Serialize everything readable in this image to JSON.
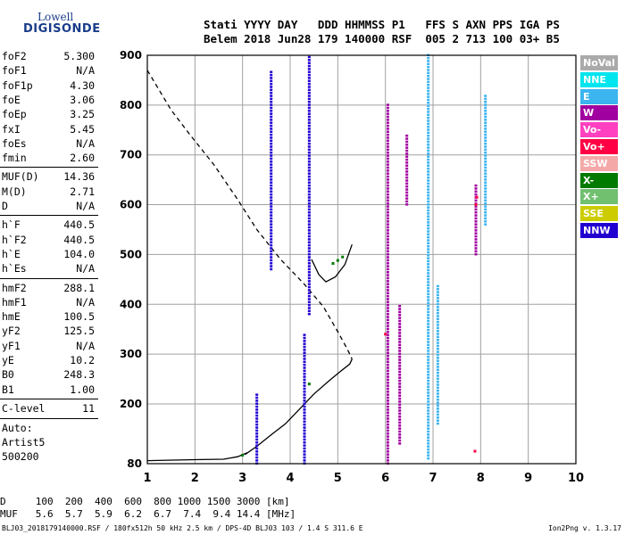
{
  "logo": {
    "line1": "Lowell",
    "line2": "DIGISONDE"
  },
  "header": {
    "row1": "Stati YYYY DAY   DDD HHMMSS P1   FFS S AXN PPS IGA PS",
    "row2": "Belem 2018 Jun28 179 140000 RSF  005 2 713 100 03+ B5"
  },
  "params": [
    {
      "name": "foF2",
      "value": "5.300"
    },
    {
      "name": "foF1",
      "value": "N/A"
    },
    {
      "name": "foF1p",
      "value": "4.30"
    },
    {
      "name": "foE",
      "value": "3.06"
    },
    {
      "name": "foEp",
      "value": "3.25"
    },
    {
      "name": "fxI",
      "value": "5.45"
    },
    {
      "name": "foEs",
      "value": "N/A"
    },
    {
      "name": "fmin",
      "value": "2.60"
    },
    {
      "name": "MUF(D)",
      "value": "14.36"
    },
    {
      "name": "M(D)",
      "value": "2.71"
    },
    {
      "name": "D",
      "value": "N/A"
    },
    {
      "name": "h`F",
      "value": "440.5"
    },
    {
      "name": "h`F2",
      "value": "440.5"
    },
    {
      "name": "h`E",
      "value": "104.0"
    },
    {
      "name": "h`Es",
      "value": "N/A"
    },
    {
      "name": "hmF2",
      "value": "288.1"
    },
    {
      "name": "hmF1",
      "value": "N/A"
    },
    {
      "name": "hmE",
      "value": "100.5"
    },
    {
      "name": "yF2",
      "value": "125.5"
    },
    {
      "name": "yF1",
      "value": "N/A"
    },
    {
      "name": "yE",
      "value": "10.2"
    },
    {
      "name": "B0",
      "value": "248.3"
    },
    {
      "name": "B1",
      "value": "1.00"
    },
    {
      "name": "C-level",
      "value": "11"
    }
  ],
  "autoscaling": {
    "label": "Auto:",
    "system": "Artist5",
    "version": "500200"
  },
  "legend": [
    {
      "label": "NoVal",
      "color": "#aaaaaa"
    },
    {
      "label": "NNE",
      "color": "#00e5ee"
    },
    {
      "label": "E",
      "color": "#3cb4f0"
    },
    {
      "label": "W",
      "color": "#a000a0"
    },
    {
      "label": "Vo-",
      "color": "#ff40c0"
    },
    {
      "label": "Vo+",
      "color": "#ff0044"
    },
    {
      "label": "SSW",
      "color": "#f4a8a8"
    },
    {
      "label": "X-",
      "color": "#007a00"
    },
    {
      "label": "X+",
      "color": "#70c070"
    },
    {
      "label": "SSE",
      "color": "#cccc00"
    },
    {
      "label": "NNW",
      "color": "#2000d0"
    }
  ],
  "scale": {
    "row1": "D     100  200  400  600  800 1000 1500 3000 [km]",
    "row2": "MUF   5.6  5.7  5.9  6.2  6.7  7.4  9.4 14.4 [MHz]"
  },
  "footer": {
    "left": "BLJ03_2018179140000.RSF / 180fx512h 50 kHz 2.5 km / DPS-4D BLJ03 103 / 1.4 S 311.6 E",
    "right": "Ion2Png v. 1.3.17"
  },
  "chart_data": {
    "type": "scatter",
    "title": "",
    "xlabel": "",
    "ylabel": "",
    "xlim": [
      1,
      10
    ],
    "ylim": [
      80,
      900
    ],
    "x_ticks": [
      1,
      2,
      3,
      4,
      5,
      6,
      7,
      8,
      9,
      10
    ],
    "y_ticks": [
      80,
      200,
      300,
      400,
      500,
      600,
      700,
      800,
      900
    ],
    "grid": true,
    "legend_position": "right",
    "series": [
      {
        "name": "E-layer trace",
        "kind": "line",
        "style": "solid",
        "color": "#000000",
        "x": [
          1.0,
          2.0,
          2.6,
          2.9,
          3.0,
          3.1
        ],
        "y": [
          86,
          88,
          89,
          94,
          98,
          102
        ]
      },
      {
        "name": "F-layer trace",
        "kind": "line",
        "style": "solid",
        "color": "#000000",
        "x": [
          3.05,
          3.3,
          3.6,
          3.9,
          4.2,
          4.5,
          4.8,
          5.05,
          5.25,
          5.3
        ],
        "y": [
          98,
          115,
          138,
          160,
          190,
          220,
          245,
          265,
          280,
          290
        ]
      },
      {
        "name": "Profile",
        "kind": "line",
        "style": "dashed",
        "color": "#000000",
        "x": [
          1.0,
          1.25,
          1.5,
          1.9,
          2.4,
          2.9,
          3.3,
          3.8,
          4.3,
          4.7,
          5.0,
          5.2,
          5.3
        ],
        "y": [
          870,
          830,
          790,
          740,
          680,
          610,
          550,
          490,
          440,
          395,
          345,
          310,
          290
        ]
      },
      {
        "name": "F2 cusp",
        "kind": "line",
        "style": "solid",
        "color": "#000000",
        "x": [
          4.45,
          4.6,
          4.75,
          4.95,
          5.15,
          5.3
        ],
        "y": [
          490,
          460,
          445,
          455,
          480,
          520
        ]
      },
      {
        "name": "NNW",
        "kind": "bars",
        "color": "#2000d0",
        "x": [
          3.3,
          3.6,
          4.3,
          4.4
        ],
        "ranges": [
          [
            80,
            220
          ],
          [
            470,
            870
          ],
          [
            80,
            340
          ],
          [
            380,
            900
          ]
        ]
      },
      {
        "name": "W",
        "kind": "bars",
        "color": "#a000a0",
        "x": [
          6.05,
          6.3,
          6.45,
          7.9
        ],
        "ranges": [
          [
            80,
            800
          ],
          [
            120,
            400
          ],
          [
            600,
            740
          ],
          [
            500,
            640
          ]
        ]
      },
      {
        "name": "E",
        "kind": "bars",
        "color": "#3cb4f0",
        "x": [
          6.9,
          7.1,
          8.1
        ],
        "ranges": [
          [
            90,
            900
          ],
          [
            160,
            440
          ],
          [
            560,
            820
          ]
        ]
      },
      {
        "name": "X-",
        "kind": "points",
        "color": "#007a00",
        "x": [
          4.9,
          5.0,
          5.1,
          4.4,
          3.0
        ],
        "y": [
          482,
          488,
          495,
          240,
          97
        ]
      },
      {
        "name": "Vo+",
        "kind": "points",
        "color": "#ff0044",
        "x": [
          7.9,
          7.92,
          7.88,
          6.0
        ],
        "y": [
          600,
          615,
          105,
          340
        ]
      }
    ]
  }
}
